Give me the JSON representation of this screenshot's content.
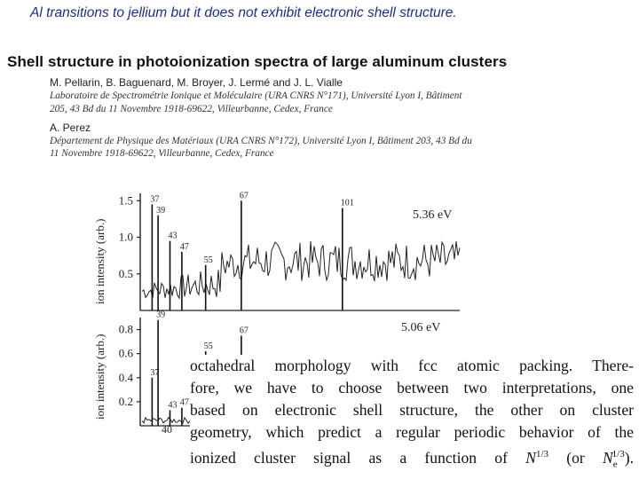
{
  "caption": "Al transitions to jellium but it does not exhibit  electronic shell structure.",
  "paper": {
    "title": "Shell structure in photoionization spectra of large aluminum clusters",
    "authors1": "M. Pellarin, B. Baguenard, M. Broyer, J. Lermé and J. L. Vialle",
    "affil1_line1": "Laboratoire de Spectrométrie Ionique et Moléculaire (URA CNRS N°171), Université Lyon I, Bâtiment",
    "affil1_line2": "205, 43 Bd du 11 Novembre 1918-69622, Villeurbanne, Cedex, France",
    "authors2": "A. Perez",
    "affil2_line1": "Département de Physique des Matériaux (URA CNRS N°172), Université Lyon I, Bâtiment 203, 43 Bd du",
    "affil2_line2": "11 Novembre 1918-69622, Villeurbanne, Cedex, France"
  },
  "excerpt": {
    "line1": "octahedral morphology with fcc atomic packing. There-",
    "line2": "fore, we have to choose between two interpretations, one",
    "line3": "based on electronic shell structure, the other on cluster",
    "line4": "geometry, which predict a regular periodic behavior of the",
    "line5_pre": "ionized cluster signal as a function of ",
    "line5_n": "N",
    "line5_exp": "1/3",
    "line5_mid": " (or ",
    "line5_ne": "N",
    "line5_sub": "e",
    "line5_exp2": "1/3",
    "line5_post": ")."
  },
  "chart_data": [
    {
      "type": "line",
      "ylabel": "ion intensity (arb.)",
      "annotation": "5.36 eV",
      "yticks": [
        "1.5",
        "1.0",
        "0.5"
      ],
      "ylim": [
        0,
        1.6
      ],
      "peak_labels": [
        "37",
        "39",
        "43",
        "47",
        "55",
        "67",
        "101"
      ],
      "peaks": [
        {
          "label": "37",
          "n": 37,
          "value": 1.45
        },
        {
          "label": "39",
          "n": 39,
          "value": 1.3
        },
        {
          "label": "43",
          "n": 43,
          "value": 0.95
        },
        {
          "label": "47",
          "n": 47,
          "value": 0.8
        },
        {
          "label": "55",
          "n": 55,
          "value": 0.62
        },
        {
          "label": "67",
          "n": 67,
          "value": 1.5
        },
        {
          "label": "101",
          "n": 101,
          "value": 1.4
        }
      ]
    },
    {
      "type": "line",
      "ylabel": "ion intensity (arb.)",
      "annotation": "5.06 eV",
      "yticks": [
        "0.8",
        "0.6",
        "0.4",
        "0.2"
      ],
      "ylim": [
        0,
        0.9
      ],
      "xtick": "40",
      "peak_labels": [
        "39",
        "37",
        "43",
        "47",
        "55",
        "67"
      ],
      "peaks": [
        {
          "label": "37",
          "n": 37,
          "value": 0.4
        },
        {
          "label": "39",
          "n": 39,
          "value": 0.88
        },
        {
          "label": "43",
          "n": 43,
          "value": 0.13
        },
        {
          "label": "47",
          "n": 47,
          "value": 0.15
        },
        {
          "label": "55",
          "n": 55,
          "value": 0.62
        },
        {
          "label": "67",
          "n": 67,
          "value": 0.75
        }
      ]
    }
  ]
}
